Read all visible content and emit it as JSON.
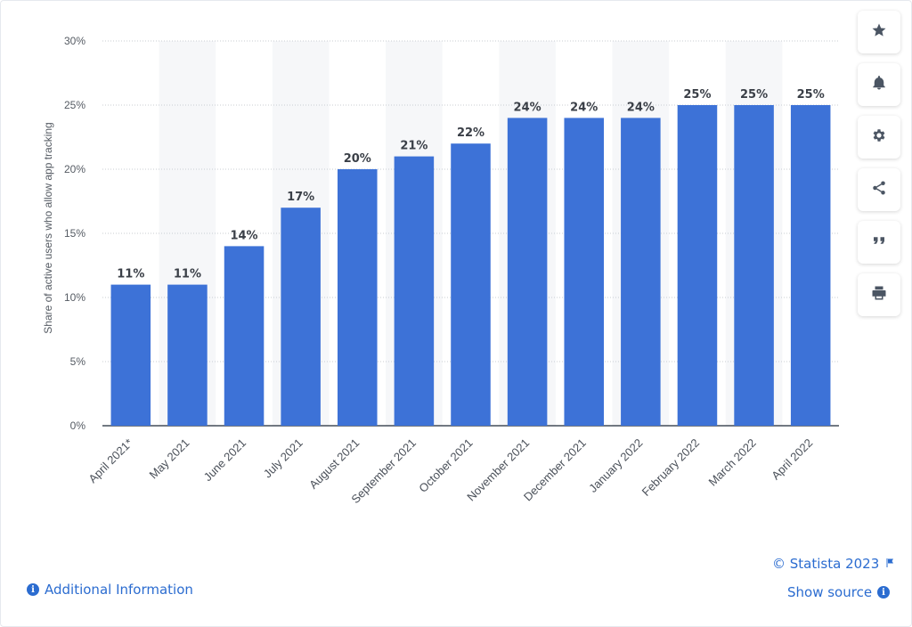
{
  "chart_data": {
    "type": "bar",
    "ylabel": "Share of active users who allow app tracking",
    "xlabel": "",
    "categories": [
      "April 2021*",
      "May 2021",
      "June 2021",
      "July 2021",
      "August 2021",
      "September 2021",
      "October 2021",
      "November 2021",
      "December 2021",
      "January 2022",
      "February 2022",
      "March 2022",
      "April 2022"
    ],
    "values": [
      11,
      11,
      14,
      17,
      20,
      21,
      22,
      24,
      24,
      24,
      25,
      25,
      25
    ],
    "value_labels": [
      "11%",
      "11%",
      "14%",
      "17%",
      "20%",
      "21%",
      "22%",
      "24%",
      "24%",
      "24%",
      "25%",
      "25%",
      "25%"
    ],
    "ylim": [
      0,
      30
    ],
    "yticks": [
      0,
      5,
      10,
      15,
      20,
      25,
      30
    ],
    "ytick_labels": [
      "0%",
      "5%",
      "10%",
      "15%",
      "20%",
      "25%",
      "30%"
    ],
    "grid": true,
    "bar_color": "#3d72d7"
  },
  "toolbar": {
    "icons": [
      "star-icon",
      "bell-icon",
      "gear-icon",
      "share-icon",
      "quote-icon",
      "print-icon"
    ]
  },
  "footer": {
    "copyright": "© Statista 2023",
    "show_source": "Show source",
    "additional_info": "Additional Information"
  },
  "colors": {
    "accent": "#2b6cd0",
    "bar": "#3d72d7"
  }
}
